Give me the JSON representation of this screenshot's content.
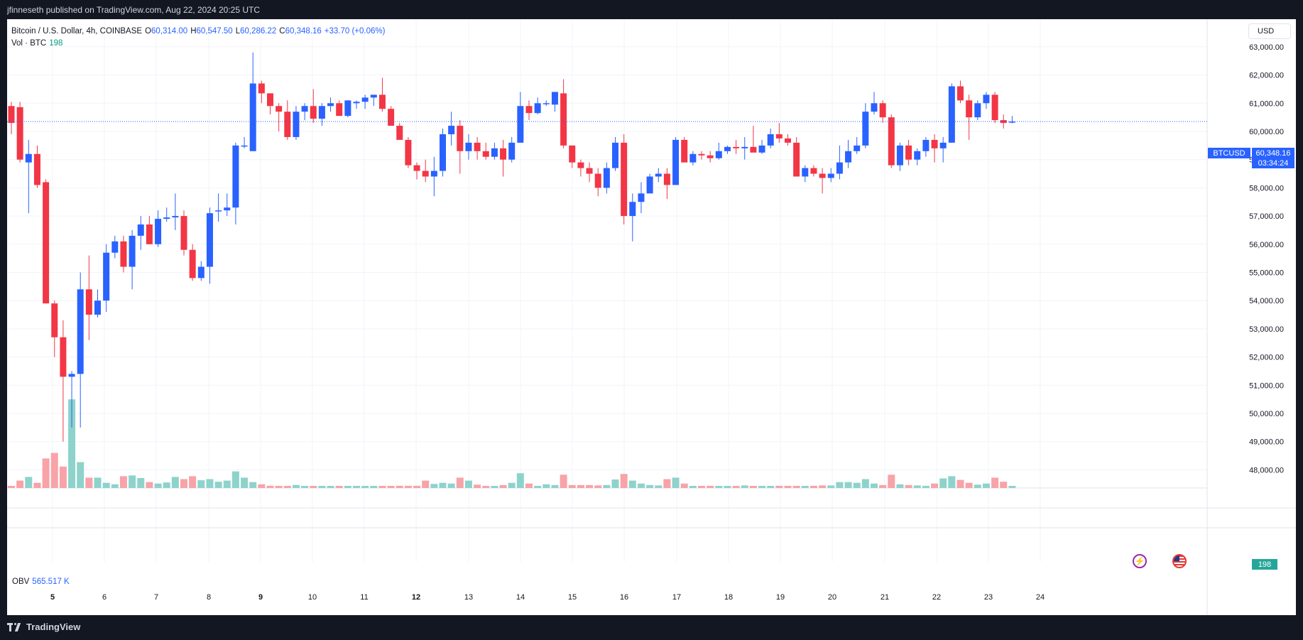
{
  "header": {
    "published_text": "jfinneseth published on TradingView.com, Aug 22, 2024 20:25 UTC"
  },
  "legend": {
    "symbol": "Bitcoin / U.S. Dollar, 4h, COINBASE",
    "open_label": "O",
    "open": "60,314.00",
    "high_label": "H",
    "high": "60,547.50",
    "low_label": "L",
    "low": "60,286.22",
    "close_label": "C",
    "close": "60,348.16",
    "change": "+33.70 (+0.06%)",
    "vol_label": "Vol · BTC",
    "vol_value": "198"
  },
  "obv": {
    "label": "OBV",
    "value": "565.517 K"
  },
  "currency_button": "USD",
  "last_price": {
    "ticker": "BTCUSD",
    "price": "60,348.16",
    "countdown": "03:34:24"
  },
  "volume_label": "198",
  "footer": {
    "brand": "TradingView"
  },
  "colors": {
    "up": "#2962ff",
    "down": "#f23645",
    "vol_up": "#8dd3cb",
    "vol_down": "#f7a3a8",
    "background": "#ffffff",
    "frame": "#131722"
  },
  "icons": [
    "lightning-icon",
    "us-flag-icon",
    "tradingview-logo-icon"
  ],
  "chart_data": {
    "type": "candlestick",
    "timeframe": "4h",
    "y_axis_ticks": [
      63000,
      62000,
      61000,
      60000,
      59000,
      58000,
      57000,
      56000,
      55000,
      54000,
      53000,
      52000,
      51000,
      50000,
      49000,
      48000
    ],
    "y_axis_labels": [
      "63,000.00",
      "62,000.00",
      "61,000.00",
      "60,000.00",
      "59,000.00",
      "58,000.00",
      "57,000.00",
      "56,000.00",
      "55,000.00",
      "54,000.00",
      "53,000.00",
      "52,000.00",
      "51,000.00",
      "50,000.00",
      "49,000.00",
      "48,000.00"
    ],
    "x_axis_labels": [
      "5",
      "6",
      "7",
      "8",
      "9",
      "10",
      "11",
      "12",
      "13",
      "14",
      "15",
      "16",
      "17",
      "18",
      "19",
      "20",
      "21",
      "22",
      "23",
      "24"
    ],
    "x_axis_bold": [
      "5",
      "9",
      "12"
    ],
    "candles": [
      [
        60900,
        61050,
        59900,
        60300
      ],
      [
        60860,
        61050,
        58900,
        59000
      ],
      [
        58900,
        59700,
        57100,
        59200
      ],
      [
        59200,
        59500,
        58000,
        58100
      ],
      [
        58200,
        58300,
        53900,
        53900
      ],
      [
        53900,
        54000,
        52000,
        52700
      ],
      [
        52700,
        53300,
        49000,
        51300
      ],
      [
        51300,
        51500,
        49500,
        51400
      ],
      [
        51400,
        55000,
        49500,
        54400
      ],
      [
        54400,
        55600,
        52600,
        53500
      ],
      [
        53500,
        54400,
        53400,
        54000
      ],
      [
        54000,
        56000,
        53600,
        55700
      ],
      [
        55700,
        56300,
        55500,
        56100
      ],
      [
        56100,
        56300,
        55000,
        55200
      ],
      [
        55200,
        56500,
        54400,
        56300
      ],
      [
        56300,
        57000,
        55800,
        56700
      ],
      [
        56700,
        57000,
        56000,
        56000
      ],
      [
        56000,
        57200,
        55900,
        56900
      ],
      [
        56900,
        57300,
        56800,
        56950
      ],
      [
        56950,
        57800,
        56500,
        57000
      ],
      [
        57000,
        57200,
        55600,
        55800
      ],
      [
        55800,
        56000,
        54700,
        54800
      ],
      [
        54800,
        55400,
        54700,
        55200
      ],
      [
        55200,
        57300,
        54600,
        57100
      ],
      [
        57200,
        57800,
        56800,
        57200
      ],
      [
        57200,
        57800,
        57000,
        57300
      ],
      [
        57300,
        59600,
        56700,
        59500
      ],
      [
        59500,
        59800,
        59400,
        59500
      ],
      [
        59300,
        62800,
        59300,
        61700
      ],
      [
        61700,
        61800,
        61000,
        61350
      ],
      [
        61350,
        61350,
        60600,
        60900
      ],
      [
        60900,
        61000,
        60000,
        60700
      ],
      [
        60700,
        61100,
        59700,
        59800
      ],
      [
        59800,
        60900,
        59700,
        60700
      ],
      [
        60700,
        61000,
        60400,
        60900
      ],
      [
        60900,
        61500,
        60300,
        60450
      ],
      [
        60450,
        61000,
        60200,
        60900
      ],
      [
        60900,
        61200,
        60700,
        61000
      ],
      [
        61000,
        61100,
        60550,
        60550
      ],
      [
        60550,
        61100,
        60500,
        61100
      ],
      [
        61000,
        61100,
        60800,
        61050
      ],
      [
        61050,
        61300,
        60800,
        61200
      ],
      [
        61200,
        61300,
        60900,
        61300
      ],
      [
        61300,
        61900,
        60700,
        60800
      ],
      [
        60800,
        60900,
        60200,
        60200
      ],
      [
        60200,
        60300,
        59700,
        59700
      ],
      [
        59700,
        59800,
        58700,
        58800
      ],
      [
        58800,
        58900,
        58300,
        58600
      ],
      [
        58600,
        59000,
        58200,
        58400
      ],
      [
        58400,
        59100,
        57700,
        58600
      ],
      [
        58600,
        60100,
        58400,
        59900
      ],
      [
        59900,
        60700,
        59500,
        60200
      ],
      [
        60200,
        60400,
        58500,
        59300
      ],
      [
        59300,
        59900,
        59000,
        59600
      ],
      [
        59600,
        59800,
        59000,
        59300
      ],
      [
        59300,
        59600,
        59000,
        59100
      ],
      [
        59100,
        59600,
        59000,
        59400
      ],
      [
        59400,
        59700,
        58400,
        59000
      ],
      [
        59000,
        59800,
        58900,
        59600
      ],
      [
        59600,
        61400,
        59600,
        60900
      ],
      [
        60900,
        61100,
        60400,
        60650
      ],
      [
        60650,
        61200,
        60600,
        61000
      ],
      [
        61000,
        61100,
        60900,
        61000
      ],
      [
        60950,
        61400,
        60700,
        61400
      ],
      [
        61350,
        61850,
        59400,
        59500
      ],
      [
        59500,
        59500,
        58700,
        58900
      ],
      [
        58900,
        59000,
        58400,
        58700
      ],
      [
        58700,
        58900,
        58200,
        58500
      ],
      [
        58500,
        58700,
        57700,
        58000
      ],
      [
        58000,
        58900,
        57800,
        58700
      ],
      [
        58700,
        59800,
        58600,
        59600
      ],
      [
        59600,
        59900,
        56700,
        57000
      ],
      [
        57000,
        57800,
        56100,
        57500
      ],
      [
        57500,
        58200,
        57100,
        57800
      ],
      [
        57800,
        58500,
        57800,
        58400
      ],
      [
        58400,
        58700,
        58200,
        58500
      ],
      [
        58500,
        58700,
        57600,
        58100
      ],
      [
        58100,
        59800,
        58100,
        59700
      ],
      [
        59700,
        59800,
        58900,
        58900
      ],
      [
        58900,
        59300,
        58800,
        59200
      ],
      [
        59200,
        59300,
        59000,
        59150
      ],
      [
        59150,
        59300,
        58900,
        59050
      ],
      [
        59050,
        59600,
        59000,
        59300
      ],
      [
        59300,
        59500,
        59200,
        59450
      ],
      [
        59450,
        59700,
        59200,
        59400
      ],
      [
        59400,
        59800,
        59000,
        59450
      ],
      [
        59450,
        60200,
        59300,
        59250
      ],
      [
        59250,
        59700,
        59200,
        59500
      ],
      [
        59500,
        60100,
        59400,
        59900
      ],
      [
        59900,
        60300,
        59600,
        59750
      ],
      [
        59750,
        59900,
        59500,
        59600
      ],
      [
        59600,
        59800,
        58400,
        58400
      ],
      [
        58400,
        58800,
        58200,
        58700
      ],
      [
        58700,
        58800,
        58400,
        58500
      ],
      [
        58500,
        58700,
        57800,
        58350
      ],
      [
        58350,
        58700,
        58200,
        58500
      ],
      [
        58500,
        59500,
        58300,
        58900
      ],
      [
        58900,
        59700,
        58700,
        59300
      ],
      [
        59300,
        59800,
        59200,
        59500
      ],
      [
        59500,
        61000,
        59400,
        60700
      ],
      [
        60700,
        61400,
        60600,
        61000
      ],
      [
        61000,
        61100,
        60300,
        60500
      ],
      [
        60500,
        60600,
        58700,
        58800
      ],
      [
        58800,
        59600,
        58600,
        59500
      ],
      [
        59500,
        59700,
        58800,
        59000
      ],
      [
        59000,
        59400,
        58800,
        59300
      ],
      [
        59300,
        59800,
        59100,
        59700
      ],
      [
        59700,
        59900,
        58900,
        59400
      ],
      [
        59400,
        59800,
        58900,
        59600
      ],
      [
        59600,
        61700,
        59600,
        61600
      ],
      [
        61600,
        61800,
        61000,
        61100
      ],
      [
        61100,
        61300,
        59700,
        60500
      ],
      [
        60500,
        61100,
        60400,
        61000
      ],
      [
        61000,
        61400,
        60800,
        61300
      ],
      [
        61300,
        61400,
        60300,
        60400
      ],
      [
        60400,
        60600,
        60100,
        60300
      ],
      [
        60314,
        60547.5,
        60286.22,
        60348.16
      ]
    ],
    "volumes": [
      4,
      20,
      30,
      14,
      80,
      95,
      58,
      240,
      70,
      28,
      28,
      14,
      10,
      32,
      34,
      27,
      16,
      12,
      15,
      30,
      24,
      32,
      21,
      24,
      17,
      20,
      45,
      28,
      16,
      10,
      6,
      5,
      5,
      8,
      3,
      4,
      3,
      5,
      4,
      3,
      4,
      4,
      5,
      4,
      5,
      6,
      6,
      6,
      20,
      11,
      14,
      12,
      28,
      20,
      9,
      5,
      4,
      8,
      14,
      40,
      12,
      5,
      10,
      8,
      36,
      8,
      8,
      8,
      7,
      8,
      23,
      38,
      20,
      12,
      8,
      7,
      24,
      28,
      12,
      4,
      4,
      6,
      5,
      5,
      4,
      7,
      5,
      5,
      4,
      6,
      4,
      5,
      5,
      6,
      7,
      7,
      16,
      16,
      14,
      24,
      12,
      8,
      36,
      10,
      8,
      7,
      6,
      12,
      26,
      32,
      22,
      14,
      9,
      12,
      28,
      17,
      3
    ],
    "last_price": 60348.16,
    "obv": "565.517 K"
  }
}
